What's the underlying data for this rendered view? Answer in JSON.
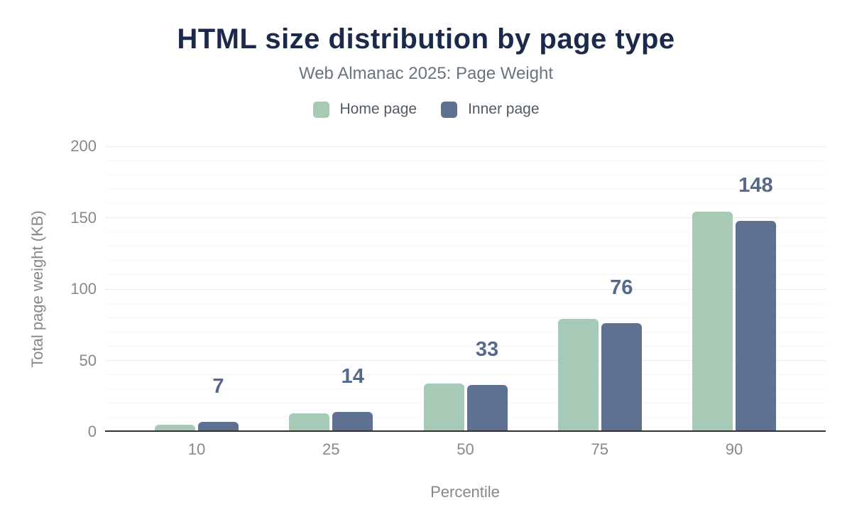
{
  "header": {
    "title": "HTML size distribution by page type",
    "subtitle": "Web Almanac 2025: Page Weight"
  },
  "chart_data": {
    "type": "bar",
    "title": "HTML size distribution by page type",
    "subtitle": "Web Almanac 2025: Page Weight",
    "xlabel": "Percentile",
    "ylabel": "Total page weight (KB)",
    "categories": [
      "10",
      "25",
      "50",
      "75",
      "90"
    ],
    "series": [
      {
        "name": "Home page",
        "color": "#a7cab7",
        "values": [
          5,
          13,
          34,
          79,
          154
        ]
      },
      {
        "name": "Inner page",
        "color": "#5e7190",
        "values": [
          7,
          14,
          33,
          76,
          148
        ]
      }
    ],
    "bar_labels": {
      "series": "Inner page",
      "values": [
        "7",
        "14",
        "33",
        "76",
        "148"
      ]
    },
    "yticks": [
      0,
      50,
      100,
      150,
      200
    ],
    "ylim": [
      0,
      200
    ],
    "minor_grid_step": 10,
    "grid": true,
    "legend_position": "top",
    "colors": {
      "title": "#1b2a4a",
      "subtitle": "#6a737e",
      "legend_text": "#525a64",
      "tick_text": "#85898d",
      "bar_label": "#56698c",
      "axis_line": "#333333",
      "grid_major": "#e9ebee",
      "grid_minor": "#f5f6f8",
      "background": "#ffffff"
    }
  }
}
